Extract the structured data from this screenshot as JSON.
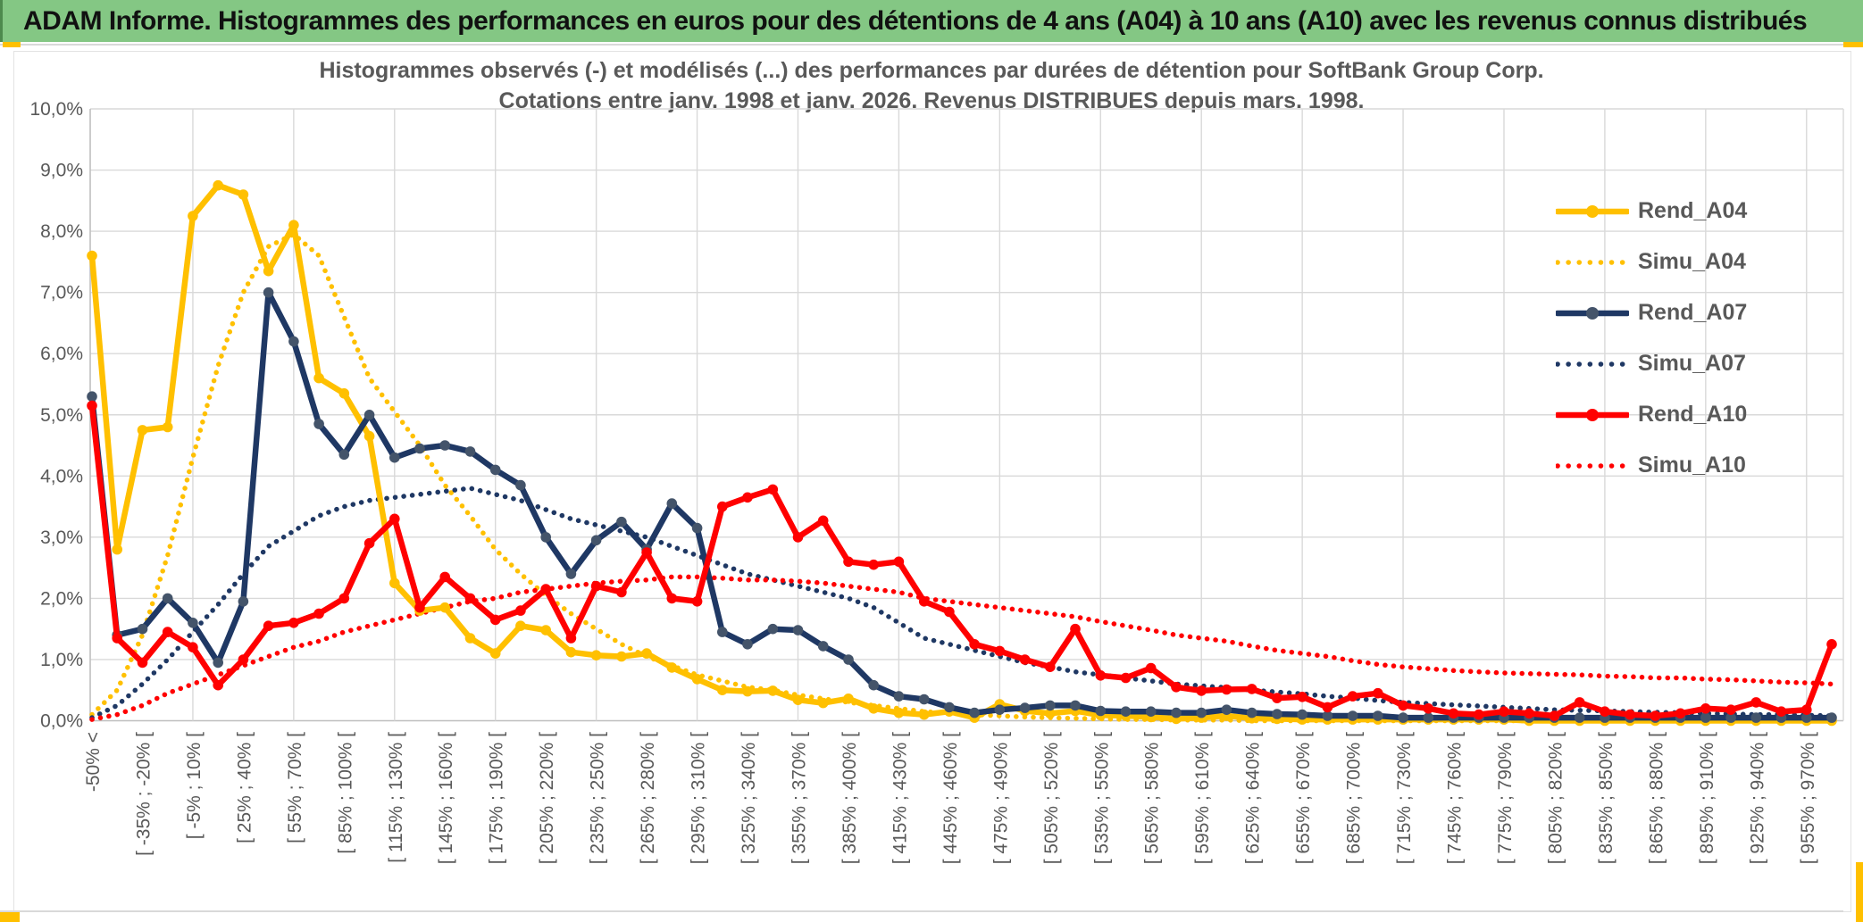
{
  "header": {
    "title": "ADAM Informe. Histogrammes des performances en euros pour des détentions de 4 ans (A04) à 10 ans (A10) avec les revenus connus distribués"
  },
  "chart": {
    "title_line1": "Histogrammes observés (-) et modélisés (...) des performances par durées de détention pour SoftBank Group Corp.",
    "title_line2": "Cotations entre janv. 1998 et janv. 2026. Revenus DISTRIBUES depuis mars. 1998."
  },
  "colors": {
    "header_green": "#84C784",
    "accent_gold": "#FFC000",
    "grid": "#D9D9D9",
    "axis": "#BFBFBF",
    "text": "#595959",
    "series_gold": "#FFC000",
    "series_navy": "#1F3864",
    "series_navy_marker": "#44546A",
    "series_red": "#FF0000"
  },
  "chart_data": {
    "type": "line",
    "title": "Histogrammes observés (-) et modélisés (...) des performances par durées de détention pour SoftBank Group Corp. Cotations entre janv. 1998 et janv. 2026. Revenus DISTRIBUES depuis mars. 1998.",
    "ylabel": "",
    "xlabel": "",
    "ylim": [
      0,
      10
    ],
    "grid": true,
    "legend_position": "right",
    "bin_width_pct": 15,
    "x_note": "70 performance bins of 15 points; every second bin carries a tick label",
    "y_ticks": [
      "0,0%",
      "1,0%",
      "2,0%",
      "3,0%",
      "4,0%",
      "5,0%",
      "6,0%",
      "7,0%",
      "8,0%",
      "9,0%",
      "10,0%"
    ],
    "x_tick_labels": [
      "-50% <",
      "[ -35% ; -20% [",
      "[ -5% ; 10% [",
      "[ 25% ; 40% [",
      "[ 55% ; 70% [",
      "[ 85% ; 100% [",
      "[ 115% ; 130% [",
      "[ 145% ; 160% [",
      "[ 175% ; 190% [",
      "[ 205% ; 220% [",
      "[ 235% ; 250% [",
      "[ 265% ; 280% [",
      "[ 295% ; 310% [",
      "[ 325% ; 340% [",
      "[ 355% ; 370% [",
      "[ 385% ; 400% [",
      "[ 415% ; 430% [",
      "[ 445% ; 460% [",
      "[ 475% ; 490% [",
      "[ 505% ; 520% [",
      "[ 535% ; 550% [",
      "[ 565% ; 580% [",
      "[ 595% ; 610% [",
      "[ 625% ; 640% [",
      "[ 655% ; 670% [",
      "[ 685% ; 700% [",
      "[ 715% ; 730% [",
      "[ 745% ; 760% [",
      "[ 775% ; 790% [",
      "[ 805% ; 820% [",
      "[ 835% ; 850% [",
      "[ 865% ; 880% [",
      "[ 895% ; 910% [",
      "[ 925% ; 940% [",
      "[ 955% ; 970% ["
    ],
    "series": [
      {
        "name": "Rend_A04",
        "style": "solid",
        "color": "#FFC000",
        "marker_color": "#FFC000",
        "values": [
          7.6,
          2.8,
          4.75,
          4.8,
          8.25,
          8.75,
          8.6,
          7.35,
          8.1,
          5.6,
          5.35,
          4.65,
          2.25,
          1.8,
          1.85,
          1.35,
          1.1,
          1.55,
          1.48,
          1.12,
          1.07,
          1.05,
          1.1,
          0.87,
          0.68,
          0.5,
          0.48,
          0.49,
          0.34,
          0.29,
          0.36,
          0.2,
          0.13,
          0.1,
          0.15,
          0.05,
          0.27,
          0.16,
          0.12,
          0.16,
          0.09,
          0.08,
          0.06,
          0.03,
          0.05,
          0.08,
          0.04,
          0.03,
          0.02,
          0.02,
          0.02,
          0.02,
          0.02,
          0.02,
          0.02,
          0.02,
          0.02,
          0,
          0,
          0,
          0,
          0,
          0,
          0,
          0,
          0,
          0,
          0,
          0,
          0
        ]
      },
      {
        "name": "Simu_A04",
        "style": "dotted",
        "color": "#FFC000",
        "values": [
          0.1,
          0.5,
          1.4,
          2.7,
          4.3,
          5.8,
          7.0,
          7.75,
          7.95,
          7.6,
          6.6,
          5.6,
          5.05,
          4.5,
          3.85,
          3.35,
          2.8,
          2.4,
          2.05,
          1.75,
          1.5,
          1.25,
          1.05,
          0.9,
          0.75,
          0.65,
          0.55,
          0.5,
          0.42,
          0.36,
          0.3,
          0.25,
          0.2,
          0.15,
          0.12,
          0.1,
          0.08,
          0.06,
          0.05,
          0.04,
          0.03,
          0.02,
          0.02,
          0.01,
          0.01,
          0.01,
          0,
          0,
          0,
          0,
          0,
          0,
          0,
          0,
          0,
          0,
          0,
          0,
          0,
          0,
          0,
          0,
          0,
          0,
          0,
          0,
          0,
          0,
          0,
          0
        ]
      },
      {
        "name": "Rend_A07",
        "style": "solid",
        "color": "#1F3864",
        "marker_color": "#44546A",
        "values": [
          5.3,
          1.4,
          1.5,
          2.0,
          1.6,
          0.95,
          1.95,
          7.0,
          6.2,
          4.85,
          4.35,
          5.0,
          4.3,
          4.45,
          4.5,
          4.4,
          4.1,
          3.85,
          3.0,
          2.4,
          2.95,
          3.25,
          2.8,
          3.55,
          3.15,
          1.45,
          1.25,
          1.5,
          1.48,
          1.22,
          1.0,
          0.58,
          0.4,
          0.35,
          0.22,
          0.13,
          0.18,
          0.21,
          0.25,
          0.25,
          0.16,
          0.15,
          0.15,
          0.13,
          0.13,
          0.18,
          0.13,
          0.11,
          0.1,
          0.08,
          0.08,
          0.08,
          0.05,
          0.05,
          0.05,
          0.05,
          0.05,
          0.05,
          0.05,
          0.05,
          0.05,
          0.05,
          0.05,
          0.05,
          0.05,
          0.05,
          0.05,
          0.05,
          0.05,
          0.05
        ]
      },
      {
        "name": "Simu_A07",
        "style": "dotted",
        "color": "#1F3864",
        "values": [
          0.05,
          0.25,
          0.6,
          1.0,
          1.45,
          1.9,
          2.4,
          2.85,
          3.1,
          3.35,
          3.5,
          3.6,
          3.65,
          3.7,
          3.75,
          3.8,
          3.7,
          3.6,
          3.45,
          3.3,
          3.2,
          3.1,
          3.0,
          2.85,
          2.7,
          2.55,
          2.4,
          2.3,
          2.2,
          2.1,
          2.0,
          1.85,
          1.6,
          1.35,
          1.25,
          1.15,
          1.05,
          0.95,
          0.88,
          0.8,
          0.75,
          0.7,
          0.65,
          0.6,
          0.57,
          0.54,
          0.5,
          0.47,
          0.44,
          0.4,
          0.37,
          0.33,
          0.3,
          0.28,
          0.26,
          0.24,
          0.22,
          0.2,
          0.18,
          0.17,
          0.16,
          0.15,
          0.14,
          0.13,
          0.12,
          0.11,
          0.1,
          0.1,
          0.09,
          0.08
        ]
      },
      {
        "name": "Rend_A10",
        "style": "solid",
        "color": "#FF0000",
        "marker_color": "#FF0000",
        "values": [
          5.15,
          1.35,
          0.95,
          1.45,
          1.2,
          0.58,
          1.0,
          1.55,
          1.6,
          1.75,
          2.0,
          2.9,
          3.3,
          1.85,
          2.35,
          2.0,
          1.65,
          1.8,
          2.15,
          1.35,
          2.2,
          2.1,
          2.75,
          2.0,
          1.95,
          3.5,
          3.65,
          3.78,
          3.0,
          3.27,
          2.6,
          2.55,
          2.6,
          1.95,
          1.78,
          1.25,
          1.14,
          1.0,
          0.88,
          1.5,
          0.74,
          0.7,
          0.86,
          0.55,
          0.49,
          0.51,
          0.52,
          0.37,
          0.39,
          0.22,
          0.4,
          0.45,
          0.25,
          0.2,
          0.12,
          0.1,
          0.15,
          0.12,
          0.08,
          0.3,
          0.15,
          0.1,
          0.08,
          0.12,
          0.2,
          0.18,
          0.3,
          0.15,
          0.18,
          1.25
        ]
      },
      {
        "name": "Simu_A10",
        "style": "dotted",
        "color": "#FF0000",
        "values": [
          0.02,
          0.1,
          0.25,
          0.45,
          0.6,
          0.75,
          0.9,
          1.05,
          1.2,
          1.3,
          1.45,
          1.55,
          1.65,
          1.75,
          1.85,
          1.95,
          2.0,
          2.1,
          2.15,
          2.2,
          2.25,
          2.28,
          2.3,
          2.35,
          2.35,
          2.33,
          2.3,
          2.3,
          2.28,
          2.25,
          2.2,
          2.15,
          2.1,
          2.0,
          1.95,
          1.9,
          1.85,
          1.8,
          1.75,
          1.7,
          1.62,
          1.55,
          1.48,
          1.4,
          1.35,
          1.3,
          1.22,
          1.15,
          1.1,
          1.05,
          0.98,
          0.92,
          0.88,
          0.85,
          0.82,
          0.8,
          0.78,
          0.77,
          0.76,
          0.75,
          0.73,
          0.72,
          0.7,
          0.7,
          0.68,
          0.67,
          0.65,
          0.63,
          0.62,
          0.6
        ]
      }
    ]
  }
}
